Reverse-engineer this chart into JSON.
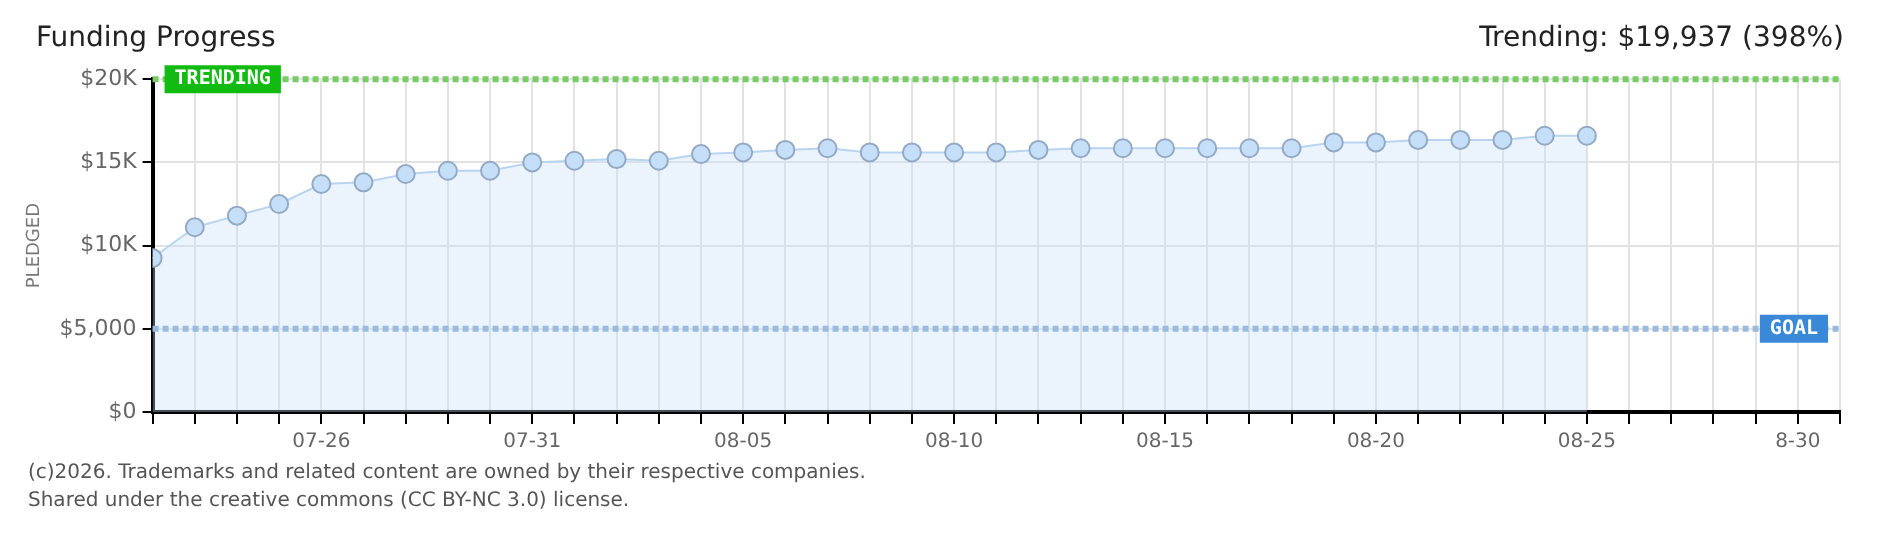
{
  "chart_data": {
    "type": "area",
    "title": "Funding Progress",
    "ylabel": "PLEDGED",
    "annotations": [
      "Trending: $19,937 (398%)",
      "(c)2026. Trademarks and related content are owned by their respective companies.",
      "Shared under the creative commons (CC BY-NC 3.0) license."
    ],
    "x": [
      "--07-22",
      "--07-23",
      "--07-24",
      "--07-25",
      "--07-26",
      "--07-27",
      "--07-28",
      "--07-29",
      "--07-30",
      "--07-31",
      "--08-01",
      "--08-02",
      "--08-03",
      "--08-04",
      "--08-05",
      "--08-06",
      "--08-07",
      "--08-08",
      "--08-09",
      "--08-10",
      "--08-11",
      "--08-12",
      "--08-13",
      "--08-14",
      "--08-15",
      "--08-16",
      "--08-17",
      "--08-18",
      "--08-19",
      "--08-20",
      "--08-21",
      "--08-22",
      "--08-23",
      "--08-24",
      "--08-25"
    ],
    "series": [
      {
        "color": "#c6dff8",
        "values": [
          9250,
          11100,
          11800,
          12500,
          13700,
          13800,
          14300,
          14500,
          14500,
          15000,
          15100,
          15200,
          15100,
          15500,
          15600,
          15750,
          15850,
          15600,
          15600,
          15600,
          15600,
          15750,
          15850,
          15850,
          15850,
          15850,
          15850,
          15850,
          16200,
          16200,
          16350,
          16350,
          16350,
          16600,
          16600
        ]
      }
    ],
    "xlim": [
      "--07-22",
      "--08-31"
    ],
    "xticks": [
      {
        "value": "--07-22",
        "label": null
      },
      {
        "value": "--07-23",
        "label": null
      },
      {
        "value": "--07-24",
        "label": null
      },
      {
        "value": "--07-25",
        "label": null
      },
      {
        "value": "--07-26",
        "label": "07-26"
      },
      {
        "value": "--07-27",
        "label": null
      },
      {
        "value": "--07-28",
        "label": null
      },
      {
        "value": "--07-29",
        "label": null
      },
      {
        "value": "--07-30",
        "label": null
      },
      {
        "value": "--07-31",
        "label": "07-31"
      },
      {
        "value": "--08-01",
        "label": null
      },
      {
        "value": "--08-02",
        "label": null
      },
      {
        "value": "--08-03",
        "label": null
      },
      {
        "value": "--08-04",
        "label": null
      },
      {
        "value": "--08-05",
        "label": "08-05"
      },
      {
        "value": "--08-06",
        "label": null
      },
      {
        "value": "--08-07",
        "label": null
      },
      {
        "value": "--08-08",
        "label": null
      },
      {
        "value": "--08-09",
        "label": null
      },
      {
        "value": "--08-10",
        "label": "08-10"
      },
      {
        "value": "--08-11",
        "label": null
      },
      {
        "value": "--08-12",
        "label": null
      },
      {
        "value": "--08-13",
        "label": null
      },
      {
        "value": "--08-14",
        "label": null
      },
      {
        "value": "--08-15",
        "label": "08-15"
      },
      {
        "value": "--08-16",
        "label": null
      },
      {
        "value": "--08-17",
        "label": null
      },
      {
        "value": "--08-18",
        "label": null
      },
      {
        "value": "--08-19",
        "label": null
      },
      {
        "value": "--08-20",
        "label": "08-20"
      },
      {
        "value": "--08-21",
        "label": null
      },
      {
        "value": "--08-22",
        "label": null
      },
      {
        "value": "--08-23",
        "label": null
      },
      {
        "value": "--08-24",
        "label": null
      },
      {
        "value": "--08-25",
        "label": "08-25"
      },
      {
        "value": "--08-26",
        "label": null
      },
      {
        "value": "--08-27",
        "label": null
      },
      {
        "value": "--08-28",
        "label": null
      },
      {
        "value": "--08-29",
        "label": null
      },
      {
        "value": "--08-30",
        "label": "8-30"
      },
      {
        "value": "--08-31",
        "label": null
      }
    ],
    "ylim": [
      0,
      20000
    ],
    "yticks": [
      {
        "value": 0,
        "label": "$0"
      },
      {
        "value": 5000,
        "label": "$5,000"
      },
      {
        "value": 10000,
        "label": "$10K"
      },
      {
        "value": 15000,
        "label": "$15K"
      },
      {
        "value": 20000,
        "label": "$20K"
      }
    ],
    "ref_lines": [
      {
        "axis": "y",
        "value": 20000,
        "label": "TRENDING",
        "color": "#77cc66",
        "line_style": "dotted"
      },
      {
        "axis": "y",
        "value": 5000,
        "label": "GOAL",
        "color": "#99bbdd",
        "line_style": "dotted"
      }
    ],
    "grid": true,
    "legend": false,
    "marker": "circle",
    "line_style": "solid"
  }
}
